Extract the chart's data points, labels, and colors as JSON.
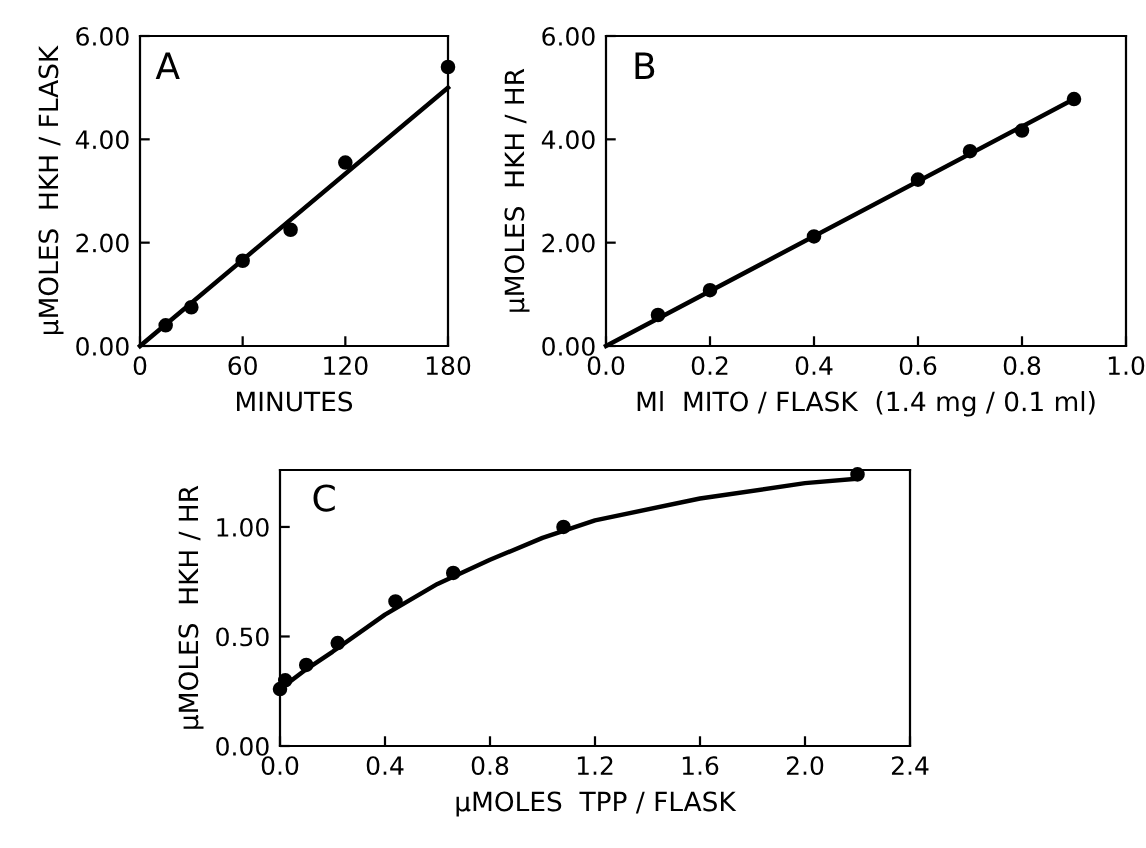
{
  "chart_data": [
    {
      "type": "scatter",
      "title": "A",
      "xlabel": "MINUTES",
      "ylabel": "μMOLES  HKH / FLASK",
      "xlim": [
        0,
        180
      ],
      "xticks": [
        0,
        60,
        120,
        180
      ],
      "ylim": [
        0,
        6
      ],
      "yticks": [
        {
          "value": 0,
          "label": "0.00"
        },
        {
          "value": 2,
          "label": "2.00"
        },
        {
          "value": 4,
          "label": "4.00"
        },
        {
          "value": 6,
          "label": "6.00"
        }
      ],
      "grid": false,
      "legend": false,
      "series": [
        {
          "marker": "circle",
          "color": "#000000",
          "x": [
            15,
            30,
            60,
            88,
            120,
            180
          ],
          "values": [
            0.4,
            0.75,
            1.65,
            2.25,
            3.55,
            5.4
          ]
        },
        {
          "type": "line",
          "marker": "none",
          "color": "#000000",
          "x": [
            0,
            180
          ],
          "values": [
            0,
            5.0
          ]
        }
      ]
    },
    {
      "type": "scatter",
      "title": "B",
      "xlabel": "Ml  MITO / FLASK  (1.4 mg / 0.1 ml)",
      "ylabel": "μMOLES  HKH / HR",
      "xlim": [
        0,
        1.0
      ],
      "xticks": [
        {
          "value": 0,
          "label": "0.0"
        },
        0.2,
        0.4,
        0.6,
        0.8,
        {
          "value": 1.0,
          "label": "1.0"
        }
      ],
      "ylim": [
        0,
        6
      ],
      "yticks": [
        {
          "value": 0,
          "label": "0.00"
        },
        {
          "value": 2,
          "label": "2.00"
        },
        {
          "value": 4,
          "label": "4.00"
        },
        {
          "value": 6,
          "label": "6.00"
        }
      ],
      "grid": false,
      "legend": false,
      "series": [
        {
          "marker": "circle",
          "color": "#000000",
          "x": [
            0.1,
            0.2,
            0.4,
            0.6,
            0.7,
            0.8,
            0.9
          ],
          "values": [
            0.6,
            1.08,
            2.12,
            3.22,
            3.77,
            4.17,
            4.78
          ]
        },
        {
          "type": "line",
          "marker": "none",
          "color": "#000000",
          "x": [
            0,
            0.9
          ],
          "values": [
            0,
            4.78
          ]
        }
      ]
    },
    {
      "type": "scatter",
      "title": "C",
      "xlabel": "μMOLES  TPP / FLASK",
      "ylabel": "μMOLES  HKH / HR",
      "xlim": [
        0,
        2.4
      ],
      "xticks": [
        {
          "value": 0,
          "label": "0.0"
        },
        0.4,
        0.8,
        1.2,
        1.6,
        {
          "value": 2.0,
          "label": "2.0"
        },
        2.4
      ],
      "ylim": [
        0,
        1.26
      ],
      "yticks": [
        {
          "value": 0,
          "label": "0.00"
        },
        {
          "value": 0.5,
          "label": "0.50"
        },
        {
          "value": 1.0,
          "label": "1.00"
        }
      ],
      "grid": false,
      "legend": false,
      "series": [
        {
          "marker": "circle",
          "color": "#000000",
          "x": [
            0.0,
            0.02,
            0.1,
            0.22,
            0.44,
            0.66,
            1.08,
            2.2
          ],
          "values": [
            0.26,
            0.3,
            0.37,
            0.47,
            0.66,
            0.79,
            1.0,
            1.24
          ]
        },
        {
          "type": "line",
          "marker": "none",
          "color": "#000000",
          "x": [
            0,
            0.1,
            0.2,
            0.4,
            0.6,
            0.8,
            1.0,
            1.2,
            1.6,
            2.0,
            2.2
          ],
          "values": [
            0.26,
            0.35,
            0.43,
            0.6,
            0.74,
            0.85,
            0.95,
            1.03,
            1.13,
            1.2,
            1.22
          ]
        }
      ]
    }
  ]
}
